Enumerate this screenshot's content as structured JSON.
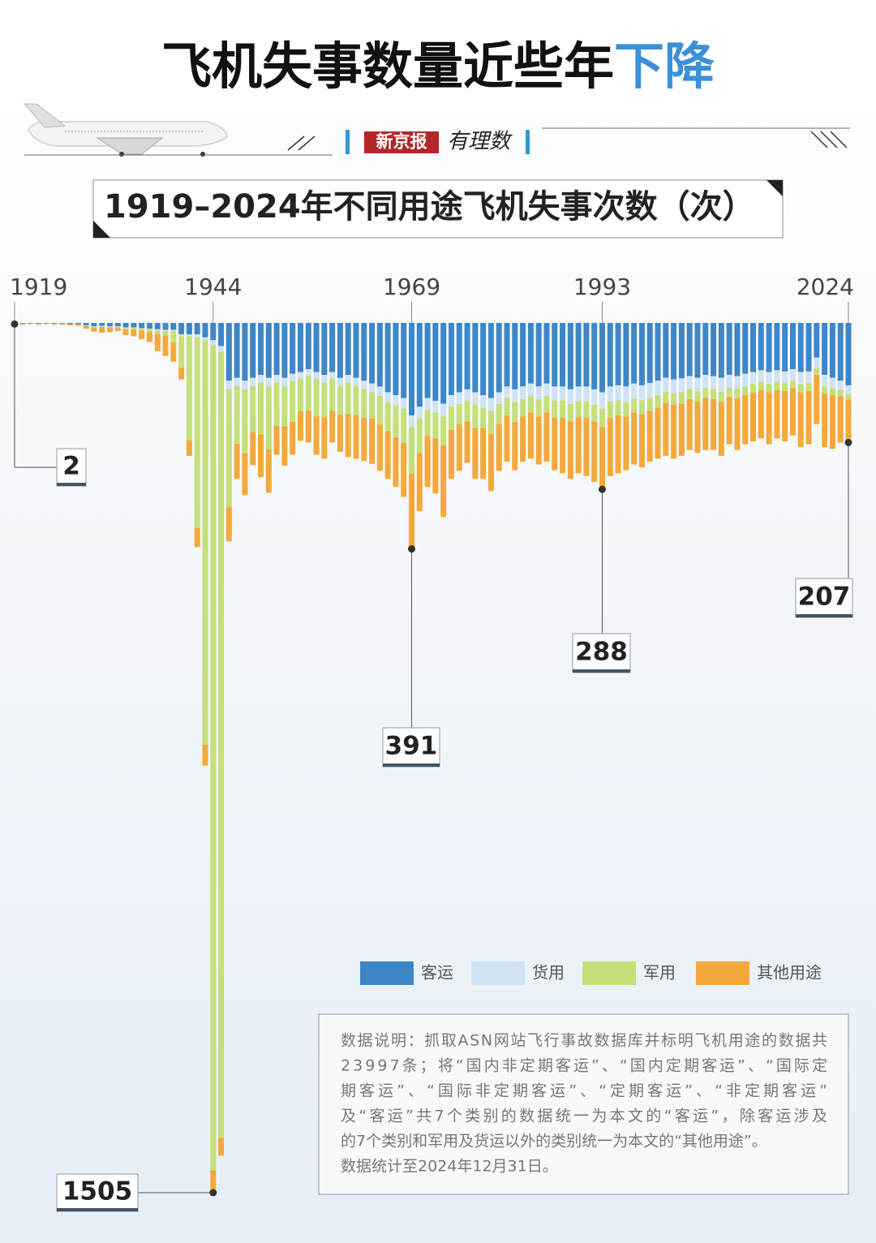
{
  "header": {
    "title": [
      "飞机失事数量近些年",
      "下降"
    ],
    "brand": "新京报",
    "brand_sub": "有理数"
  },
  "chart_data": {
    "type": "stacked-bar-down",
    "title": "1919–2024年不同用途飞机失事次数（次）",
    "x": [
      1919,
      1920,
      1921,
      1922,
      1923,
      1924,
      1925,
      1926,
      1927,
      1928,
      1929,
      1930,
      1931,
      1932,
      1933,
      1934,
      1935,
      1936,
      1937,
      1938,
      1939,
      1940,
      1941,
      1942,
      1943,
      1944,
      1945,
      1946,
      1947,
      1948,
      1949,
      1950,
      1951,
      1952,
      1953,
      1954,
      1955,
      1956,
      1957,
      1958,
      1959,
      1960,
      1961,
      1962,
      1963,
      1964,
      1965,
      1966,
      1967,
      1968,
      1969,
      1970,
      1971,
      1972,
      1973,
      1974,
      1975,
      1976,
      1977,
      1978,
      1979,
      1980,
      1981,
      1982,
      1983,
      1984,
      1985,
      1986,
      1987,
      1988,
      1989,
      1990,
      1991,
      1992,
      1993,
      1994,
      1995,
      1996,
      1997,
      1998,
      1999,
      2000,
      2001,
      2002,
      2003,
      2004,
      2005,
      2006,
      2007,
      2008,
      2009,
      2010,
      2011,
      2012,
      2013,
      2014,
      2015,
      2016,
      2017,
      2018,
      2019,
      2020,
      2021,
      2022,
      2023,
      2024
    ],
    "xlim": [
      1919,
      2024
    ],
    "xticks": [
      1919,
      1944,
      1969,
      1993,
      2024
    ],
    "ylim": [
      0,
      1505
    ],
    "series": [
      {
        "name": "客运",
        "color": "#3d87c8",
        "values": [
          0,
          1,
          1,
          1,
          1,
          1,
          1,
          2,
          2,
          4,
          6,
          5,
          6,
          6,
          8,
          8,
          9,
          10,
          11,
          12,
          12,
          20,
          20,
          20,
          25,
          30,
          40,
          100,
          95,
          100,
          95,
          90,
          95,
          90,
          95,
          88,
          85,
          80,
          85,
          90,
          85,
          95,
          90,
          95,
          100,
          105,
          110,
          120,
          125,
          130,
          160,
          145,
          130,
          135,
          140,
          125,
          120,
          115,
          120,
          125,
          130,
          120,
          110,
          115,
          110,
          105,
          110,
          105,
          110,
          110,
          115,
          110,
          110,
          115,
          120,
          110,
          108,
          110,
          105,
          108,
          104,
          100,
          95,
          98,
          96,
          92,
          95,
          90,
          92,
          95,
          90,
          92,
          88,
          85,
          82,
          85,
          82,
          84,
          80,
          85,
          84,
          60,
          90,
          95,
          100,
          108
        ]
      },
      {
        "name": "货用",
        "color": "#cfe3f5",
        "values": [
          0,
          0,
          0,
          0,
          0,
          0,
          0,
          0,
          0,
          1,
          1,
          1,
          1,
          1,
          1,
          1,
          1,
          1,
          2,
          2,
          2,
          3,
          3,
          5,
          5,
          8,
          10,
          15,
          14,
          15,
          14,
          13,
          14,
          13,
          14,
          13,
          12,
          12,
          12,
          13,
          12,
          14,
          13,
          14,
          14,
          15,
          16,
          17,
          18,
          18,
          20,
          20,
          20,
          20,
          22,
          20,
          20,
          20,
          22,
          22,
          22,
          20,
          20,
          22,
          22,
          22,
          22,
          22,
          24,
          24,
          25,
          25,
          26,
          26,
          28,
          26,
          26,
          27,
          26,
          26,
          26,
          25,
          24,
          24,
          24,
          22,
          23,
          22,
          22,
          24,
          22,
          22,
          22,
          21,
          20,
          21,
          20,
          20,
          20,
          21,
          20,
          18,
          20,
          18,
          16,
          15
        ]
      },
      {
        "name": "军用",
        "color": "#c5df7a",
        "values": [
          0,
          0,
          0,
          0,
          0,
          0,
          0,
          0,
          0,
          0,
          1,
          1,
          1,
          1,
          2,
          2,
          3,
          4,
          6,
          8,
          20,
          55,
          180,
          330,
          700,
          1428,
          1360,
          204,
          100,
          110,
          80,
          90,
          110,
          75,
          70,
          70,
          55,
          60,
          65,
          60,
          55,
          50,
          55,
          50,
          50,
          45,
          50,
          50,
          55,
          60,
          80,
          60,
          45,
          45,
          50,
          40,
          35,
          35,
          40,
          35,
          40,
          35,
          30,
          35,
          30,
          28,
          30,
          28,
          30,
          30,
          30,
          28,
          28,
          30,
          32,
          28,
          26,
          25,
          24,
          24,
          22,
          22,
          20,
          20,
          20,
          18,
          18,
          18,
          18,
          18,
          16,
          16,
          15,
          15,
          14,
          14,
          14,
          14,
          13,
          14,
          14,
          12,
          12,
          12,
          10,
          10
        ]
      },
      {
        "name": "其他用途",
        "color": "#f4a93b",
        "values": [
          2,
          2,
          1,
          2,
          1,
          2,
          2,
          2,
          3,
          5,
          7,
          10,
          8,
          6,
          10,
          12,
          15,
          18,
          30,
          35,
          33,
          20,
          27,
          33,
          36,
          39,
          31,
          59,
          61,
          73,
          57,
          74,
          75,
          50,
          68,
          57,
          52,
          55,
          66,
          72,
          55,
          64,
          74,
          76,
          75,
          79,
          80,
          83,
          86,
          93,
          131,
          101,
          89,
          95,
          124,
          85,
          81,
          72,
          88,
          88,
          99,
          81,
          80,
          83,
          78,
          80,
          83,
          85,
          91,
          96,
          100,
          97,
          101,
          104,
          108,
          101,
          100,
          93,
          90,
          92,
          88,
          88,
          91,
          93,
          90,
          88,
          89,
          90,
          88,
          93,
          82,
          90,
          85,
          84,
          84,
          90,
          84,
          87,
          82,
          95,
          92,
          85,
          93,
          93,
          81,
          74
        ]
      }
    ],
    "callouts": [
      {
        "year": 1919,
        "total": 2
      },
      {
        "year": 1944,
        "total": 1505
      },
      {
        "year": 1969,
        "total": 391
      },
      {
        "year": 1993,
        "total": 288
      },
      {
        "year": 2024,
        "total": 207
      }
    ],
    "note": [
      "数据说明：抓取ASN网站飞行事故数据库并标明飞机用途的数据共",
      "23997条；将“国内非定期客运”、“国内定期客运”、“国际定",
      "期客运”、“国际非定期客运”、“定期客运”、“非定期客运”",
      "及“客运”共7个类别的数据统一为本文的“客运”，除客运涉及",
      "的7个类别和军用及货运以外的类别统一为本文的“其他用途”。",
      "数据统计至2024年12月31日。"
    ]
  }
}
